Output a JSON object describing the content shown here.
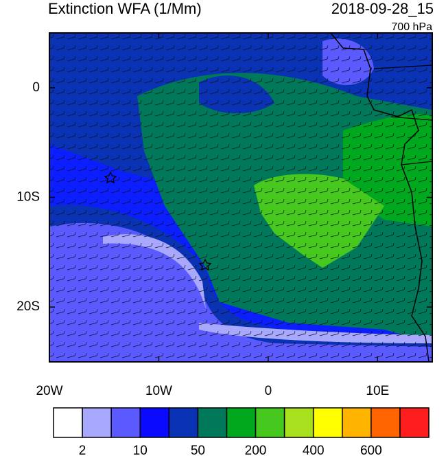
{
  "header": {
    "title": "Extinction WFA (1/Mm)",
    "time": "2018-09-28_15",
    "level": "700 hPa"
  },
  "map": {
    "lonlim": [
      -20,
      15
    ],
    "latlim": [
      -25,
      5
    ],
    "lon_ticks": [
      {
        "value": -20,
        "label": "20W"
      },
      {
        "value": -10,
        "label": "10W"
      },
      0,
      {
        "value": 10,
        "label": "10E"
      }
    ],
    "lat_ticks": [
      0,
      {
        "value": -10,
        "label": "10S"
      },
      {
        "value": -20,
        "label": "20S"
      }
    ]
  },
  "colorbar": {
    "colors": [
      "#ffffff",
      "#a8a8ff",
      "#5a5aff",
      "#0a0aff",
      "#0a32b4",
      "#00785a",
      "#00a81e",
      "#46c81e",
      "#a8e01e",
      "#ffff00",
      "#ffb400",
      "#ff6400",
      "#ff1e1e"
    ],
    "labels": [
      2,
      10,
      50,
      200,
      400,
      600
    ]
  }
}
